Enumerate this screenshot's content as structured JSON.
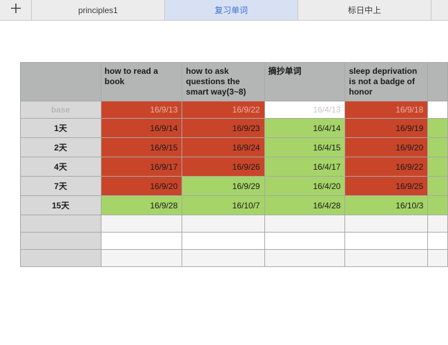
{
  "tabs": {
    "add_icon": "plus-icon",
    "items": [
      {
        "label": "principles1",
        "active": false
      },
      {
        "label": "复习单词",
        "active": true
      },
      {
        "label": "标日中上",
        "active": false
      }
    ]
  },
  "table": {
    "headers": [
      "how to read a book",
      "how to ask questions  the smart way(3~8)",
      "摘抄单词",
      "sleep deprivation is not a badge of honor",
      ""
    ],
    "rows": [
      {
        "label": "base",
        "cells": [
          "16/9/13",
          "16/9/22",
          "16/4/13",
          "16/9/18",
          ""
        ]
      },
      {
        "label": "1天",
        "cells": [
          "16/9/14",
          "16/9/23",
          "16/4/14",
          "16/9/19",
          ""
        ]
      },
      {
        "label": "2天",
        "cells": [
          "16/9/15",
          "16/9/24",
          "16/4/15",
          "16/9/20",
          ""
        ]
      },
      {
        "label": "4天",
        "cells": [
          "16/9/17",
          "16/9/26",
          "16/4/17",
          "16/9/22",
          ""
        ]
      },
      {
        "label": "7天",
        "cells": [
          "16/9/20",
          "16/9/29",
          "16/4/20",
          "16/9/25",
          ""
        ]
      },
      {
        "label": "15天",
        "cells": [
          "16/9/28",
          "16/10/7",
          "16/4/28",
          "16/10/3",
          ""
        ]
      }
    ]
  },
  "colors": {
    "overdue_red": "#c9452a",
    "done_green": "#a6d468",
    "header_gray": "#b4b5b5",
    "row_head_gray": "#d8d8d8",
    "active_tab_bg": "#d8e0f3",
    "active_tab_text": "#3b73d6"
  }
}
